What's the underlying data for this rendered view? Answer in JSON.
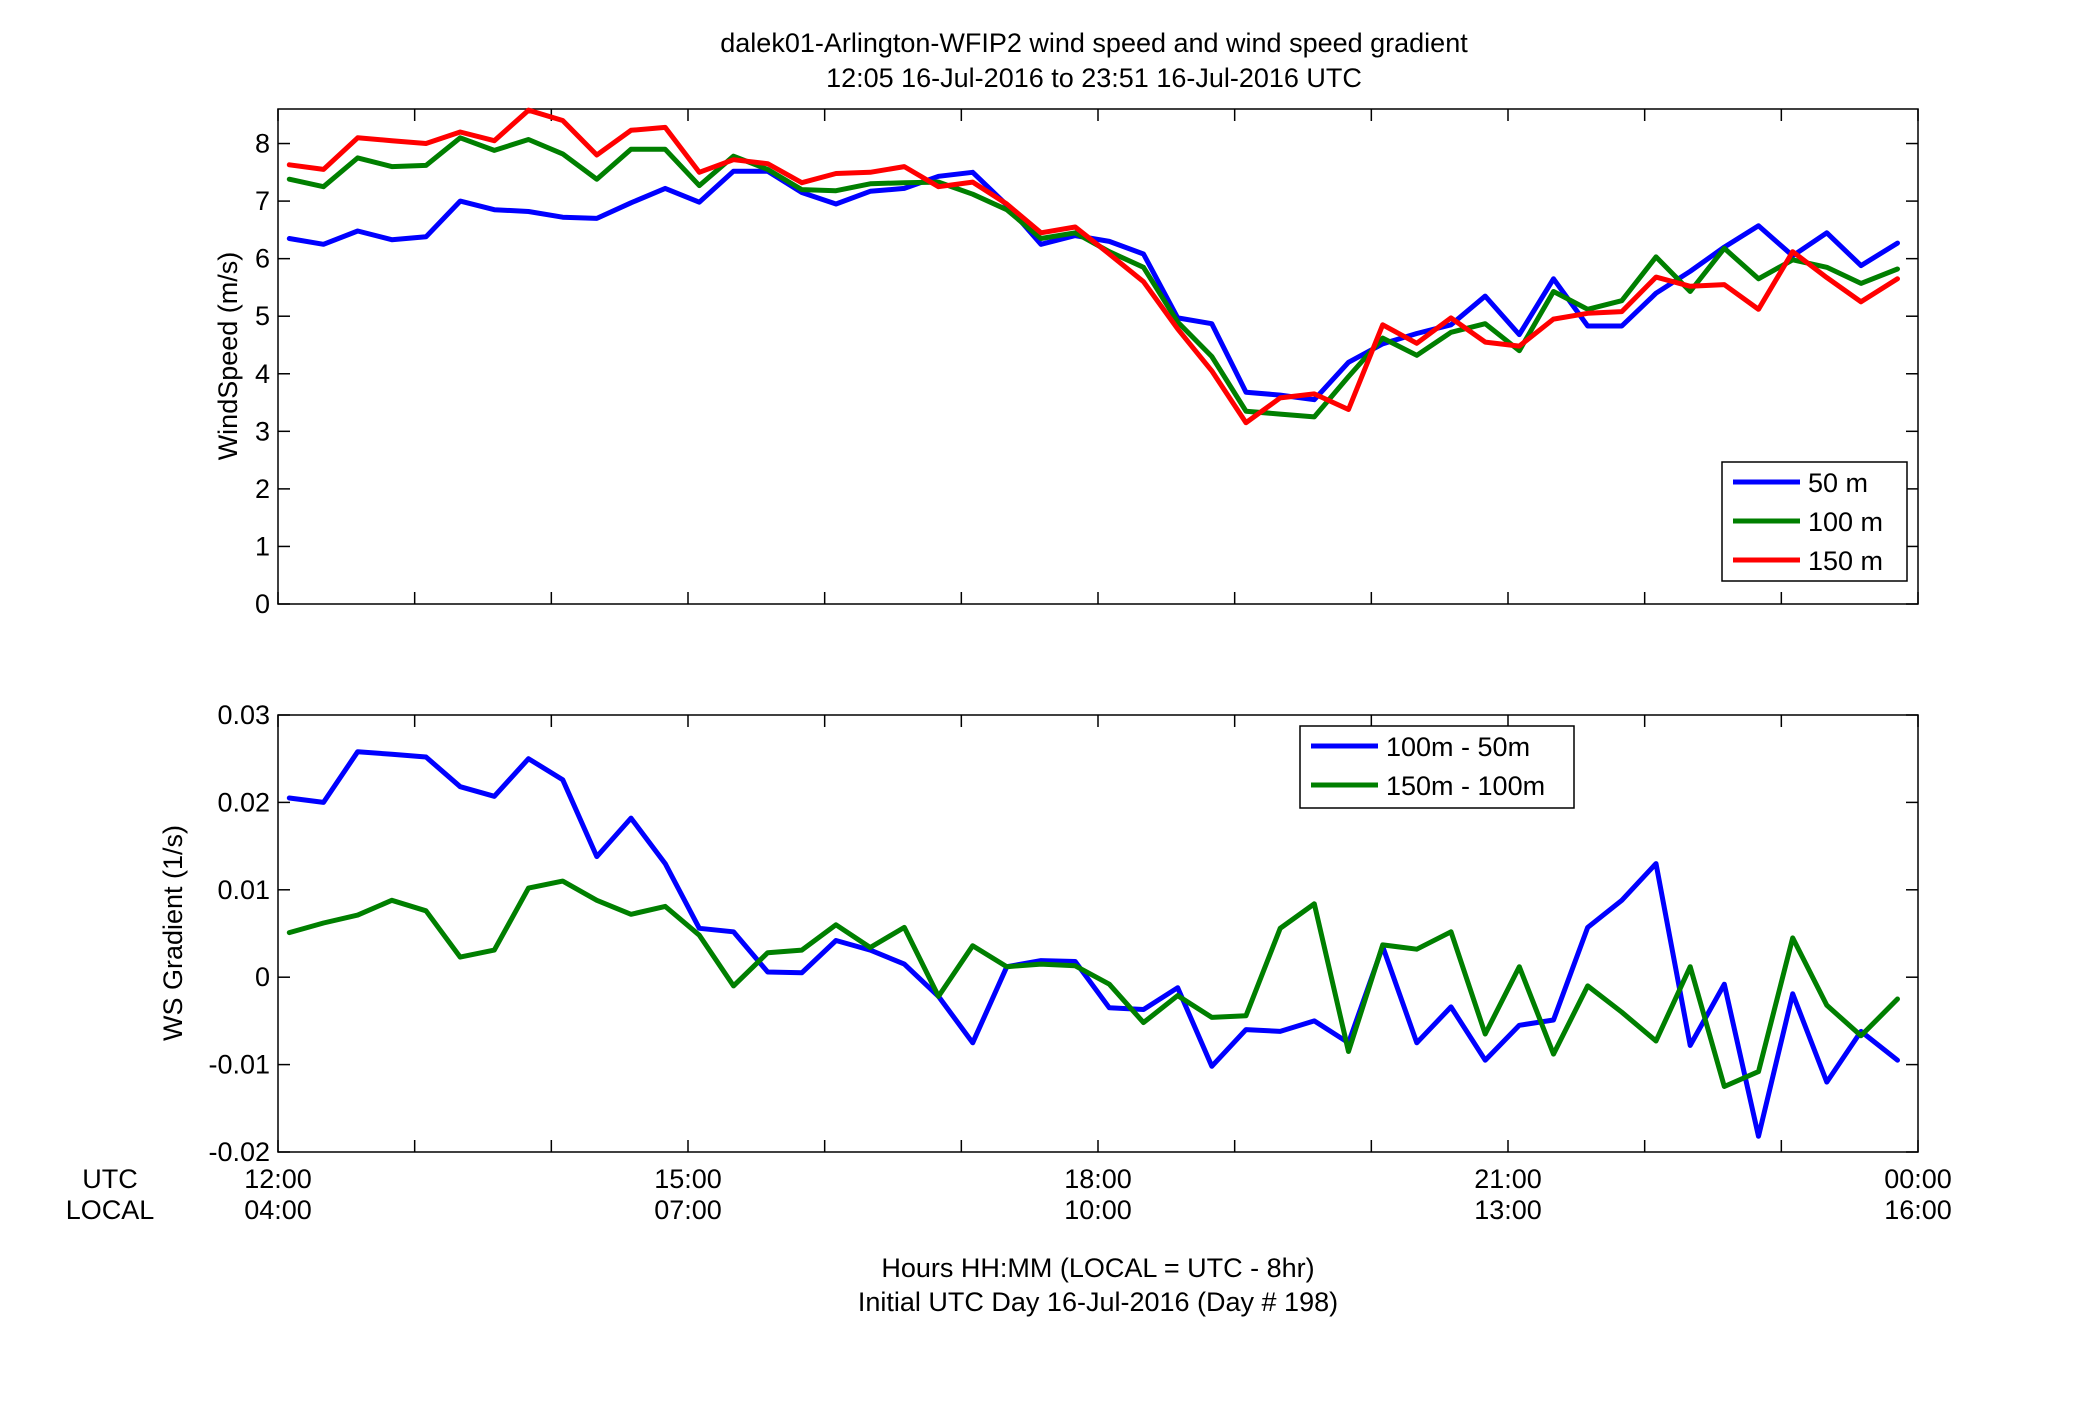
{
  "figure": {
    "title_line1": "dalek01-Arlington-WFIP2  wind speed and wind speed gradient",
    "title_line2": "12:05 16-Jul-2016 to 23:51 16-Jul-2016  UTC",
    "xlabel_line1": "Hours HH:MM  (LOCAL = UTC - 8hr)",
    "xlabel_line2": "Initial UTC Day 16-Jul-2016 (Day # 198)",
    "utc_row_label": "UTC",
    "local_row_label": "LOCAL",
    "utc_ticks": [
      "12:00",
      "15:00",
      "18:00",
      "21:00",
      "00:00"
    ],
    "local_ticks": [
      "04:00",
      "07:00",
      "10:00",
      "13:00",
      "16:00"
    ]
  },
  "chart_data": [
    {
      "type": "line",
      "ylabel": "WindSpeed (m/s)",
      "xlim": [
        12.0,
        24.0
      ],
      "ylim": [
        0,
        8.6
      ],
      "yticks": [
        "0",
        "1",
        "2",
        "3",
        "4",
        "5",
        "6",
        "7",
        "8"
      ],
      "legend_position": "lower-right",
      "x": [
        12.083,
        12.333,
        12.583,
        12.833,
        13.083,
        13.333,
        13.583,
        13.833,
        14.083,
        14.333,
        14.583,
        14.833,
        15.083,
        15.333,
        15.583,
        15.833,
        16.083,
        16.333,
        16.583,
        16.833,
        17.083,
        17.333,
        17.583,
        17.833,
        18.083,
        18.333,
        18.583,
        18.833,
        19.083,
        19.333,
        19.583,
        19.833,
        20.083,
        20.333,
        20.583,
        20.833,
        21.083,
        21.333,
        21.583,
        21.833,
        22.083,
        22.333,
        22.583,
        22.833,
        23.083,
        23.333,
        23.583,
        23.85
      ],
      "series": [
        {
          "name": "50 m",
          "color": "#0000ff",
          "values": [
            6.35,
            6.25,
            6.48,
            6.33,
            6.38,
            7.0,
            6.85,
            6.82,
            6.72,
            6.7,
            6.97,
            7.22,
            6.98,
            7.52,
            7.52,
            7.15,
            6.95,
            7.17,
            7.22,
            7.43,
            7.5,
            6.93,
            6.25,
            6.4,
            6.3,
            6.08,
            4.97,
            4.87,
            3.68,
            3.63,
            3.55,
            4.2,
            4.52,
            4.7,
            4.85,
            5.35,
            4.68,
            5.65,
            4.83,
            4.83,
            5.4,
            5.78,
            6.2,
            6.57,
            6.05,
            6.45,
            5.88,
            6.27
          ]
        },
        {
          "name": "100 m",
          "color": "#007f00",
          "values": [
            7.38,
            7.25,
            7.75,
            7.6,
            7.62,
            8.1,
            7.88,
            8.07,
            7.82,
            7.38,
            7.9,
            7.9,
            7.27,
            7.78,
            7.55,
            7.2,
            7.18,
            7.3,
            7.32,
            7.33,
            7.12,
            6.85,
            6.35,
            6.45,
            6.12,
            5.85,
            4.9,
            4.3,
            3.35,
            3.3,
            3.25,
            3.95,
            4.62,
            4.32,
            4.72,
            4.87,
            4.4,
            5.43,
            5.12,
            5.27,
            6.03,
            5.43,
            6.18,
            5.65,
            5.98,
            5.85,
            5.57,
            5.82
          ]
        },
        {
          "name": "150 m",
          "color": "#ff0000",
          "values": [
            7.63,
            7.55,
            8.1,
            8.05,
            8.0,
            8.2,
            8.05,
            8.58,
            8.4,
            7.8,
            8.23,
            8.28,
            7.5,
            7.72,
            7.65,
            7.32,
            7.48,
            7.5,
            7.6,
            7.25,
            7.33,
            6.95,
            6.45,
            6.55,
            6.08,
            5.6,
            4.78,
            4.05,
            3.15,
            3.58,
            3.65,
            3.38,
            4.85,
            4.53,
            4.97,
            4.55,
            4.48,
            4.95,
            5.05,
            5.08,
            5.68,
            5.52,
            5.55,
            5.12,
            6.12,
            5.67,
            5.25,
            5.65
          ]
        }
      ]
    },
    {
      "type": "line",
      "ylabel": "WS Gradient (1/s)",
      "xlim": [
        12.0,
        24.0
      ],
      "ylim": [
        -0.02,
        0.03
      ],
      "yticks": [
        "-0.02",
        "-0.01",
        "0",
        "0.01",
        "0.02",
        "0.03"
      ],
      "legend_position": "top-right",
      "x": [
        12.083,
        12.333,
        12.583,
        12.833,
        13.083,
        13.333,
        13.583,
        13.833,
        14.083,
        14.333,
        14.583,
        14.833,
        15.083,
        15.333,
        15.583,
        15.833,
        16.083,
        16.333,
        16.583,
        16.833,
        17.083,
        17.333,
        17.583,
        17.833,
        18.083,
        18.333,
        18.583,
        18.833,
        19.083,
        19.333,
        19.583,
        19.833,
        20.083,
        20.333,
        20.583,
        20.833,
        21.083,
        21.333,
        21.583,
        21.833,
        22.083,
        22.333,
        22.583,
        22.833,
        23.083,
        23.333,
        23.583,
        23.85
      ],
      "series": [
        {
          "name": "100m - 50m",
          "color": "#0000ff",
          "values": [
            0.0205,
            0.02,
            0.0258,
            0.0255,
            0.0252,
            0.0218,
            0.0207,
            0.025,
            0.0226,
            0.0138,
            0.0182,
            0.013,
            0.0056,
            0.0052,
            0.0006,
            0.0005,
            0.0042,
            0.0031,
            0.0015,
            -0.0022,
            -0.0075,
            0.0012,
            0.0019,
            0.0018,
            -0.0035,
            -0.0037,
            -0.0012,
            -0.0102,
            -0.006,
            -0.0062,
            -0.005,
            -0.0075,
            0.0035,
            -0.0075,
            -0.0034,
            -0.0095,
            -0.0055,
            -0.0049,
            0.0057,
            0.0088,
            0.013,
            -0.0078,
            -0.0008,
            -0.0182,
            -0.0019,
            -0.012,
            -0.0062,
            -0.0095
          ]
        },
        {
          "name": "150m - 100m",
          "color": "#007f00",
          "values": [
            0.0051,
            0.0062,
            0.0071,
            0.0088,
            0.0076,
            0.0023,
            0.0031,
            0.0102,
            0.011,
            0.0088,
            0.0072,
            0.0081,
            0.0048,
            -0.001,
            0.0028,
            0.0031,
            0.006,
            0.0034,
            0.0057,
            -0.0022,
            0.0036,
            0.0012,
            0.0015,
            0.0013,
            -0.0008,
            -0.0052,
            -0.0021,
            -0.0046,
            -0.0044,
            0.0056,
            0.0084,
            -0.0085,
            0.0037,
            0.0032,
            0.0052,
            -0.0065,
            0.0012,
            -0.0088,
            -0.001,
            -0.004,
            -0.0073,
            0.0012,
            -0.0125,
            -0.0108,
            0.0045,
            -0.0032,
            -0.0067,
            -0.0025
          ]
        }
      ]
    }
  ]
}
